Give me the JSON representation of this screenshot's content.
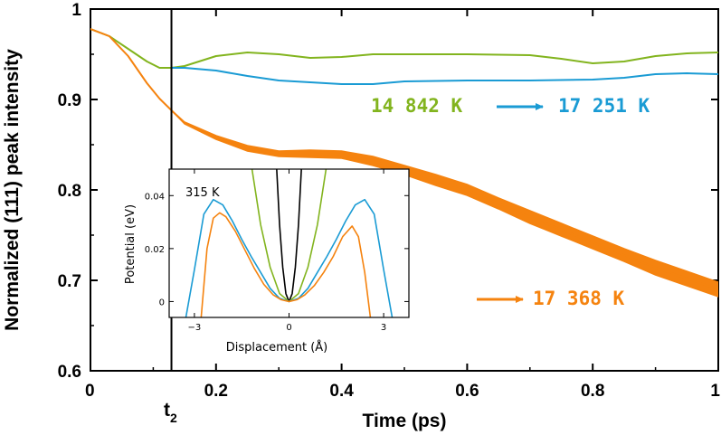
{
  "chart_data": {
    "type": "line",
    "xlabel": "Time (ps)",
    "ylabel": "Normalized (111) peak intensity",
    "xlim": [
      0,
      1
    ],
    "ylim": [
      0.6,
      1.0
    ],
    "x_ticks": [
      "0",
      "0.2",
      "0.4",
      "0.6",
      "0.8",
      "1"
    ],
    "y_ticks": [
      "0.6",
      "0.7",
      "0.8",
      "0.9",
      "1"
    ],
    "marker_line": {
      "label": "t",
      "subscript": "2",
      "x": 0.129
    },
    "colors": {
      "green": "#82b41e",
      "blue": "#1a9bd4",
      "orange": "#f5830f"
    },
    "series": [
      {
        "name": "green",
        "x": [
          0,
          0.03,
          0.06,
          0.09,
          0.11,
          0.129,
          0.15,
          0.2,
          0.25,
          0.3,
          0.35,
          0.4,
          0.45,
          0.5,
          0.6,
          0.7,
          0.75,
          0.8,
          0.85,
          0.9,
          0.95,
          1.0
        ],
        "values": [
          0.978,
          0.97,
          0.956,
          0.942,
          0.935,
          0.935,
          0.937,
          0.948,
          0.952,
          0.95,
          0.946,
          0.947,
          0.95,
          0.95,
          0.95,
          0.949,
          0.945,
          0.94,
          0.942,
          0.948,
          0.951,
          0.952
        ]
      },
      {
        "name": "blue",
        "x": [
          0.129,
          0.15,
          0.2,
          0.25,
          0.3,
          0.35,
          0.4,
          0.45,
          0.5,
          0.6,
          0.7,
          0.8,
          0.85,
          0.9,
          0.95,
          1.0
        ],
        "values": [
          0.935,
          0.935,
          0.932,
          0.926,
          0.921,
          0.919,
          0.917,
          0.917,
          0.92,
          0.921,
          0.921,
          0.922,
          0.924,
          0.928,
          0.929,
          0.928
        ]
      },
      {
        "name": "orange",
        "x": [
          0,
          0.03,
          0.06,
          0.09,
          0.11,
          0.129,
          0.15,
          0.2,
          0.25,
          0.3,
          0.35,
          0.4,
          0.45,
          0.5,
          0.55,
          0.6,
          0.65,
          0.7,
          0.75,
          0.8,
          0.85,
          0.9,
          0.95,
          1.0
        ],
        "values": [
          0.978,
          0.97,
          0.948,
          0.918,
          0.901,
          0.888,
          0.874,
          0.858,
          0.846,
          0.84,
          0.84,
          0.839,
          0.832,
          0.822,
          0.811,
          0.8,
          0.785,
          0.77,
          0.756,
          0.742,
          0.728,
          0.714,
          0.702,
          0.69
        ],
        "band_halfwidth": [
          0,
          0,
          0,
          0,
          0,
          0,
          0.001,
          0.002,
          0.003,
          0.003,
          0.004,
          0.004,
          0.005,
          0.005,
          0.006,
          0.006,
          0.006,
          0.007,
          0.007,
          0.007,
          0.007,
          0.008,
          0.008,
          0.008
        ]
      }
    ],
    "annotations": {
      "green_temp": "14 842 K",
      "blue_temp": "17 251 K",
      "orange_temp": "17 368 K"
    },
    "inset": {
      "type": "line",
      "title": "315 K",
      "xlabel": "Displacement (Å)",
      "ylabel": "Potential (eV)",
      "xlim": [
        -3.8,
        3.8
      ],
      "ylim": [
        -0.006,
        0.05
      ],
      "x_ticks": [
        "−3",
        "0",
        "3"
      ],
      "y_ticks": [
        "0",
        "0.02",
        "0.04"
      ],
      "series": [
        {
          "name": "black",
          "x": [
            -0.4,
            -0.3,
            -0.2,
            -0.1,
            0,
            0.1,
            0.2,
            0.3,
            0.4
          ],
          "values": [
            0.052,
            0.029,
            0.013,
            0.003,
            0,
            0.003,
            0.013,
            0.029,
            0.052
          ]
        },
        {
          "name": "green",
          "x": [
            -1.2,
            -0.9,
            -0.6,
            -0.3,
            0,
            0.3,
            0.6,
            0.9,
            1.2
          ],
          "values": [
            0.052,
            0.029,
            0.013,
            0.003,
            0,
            0.003,
            0.013,
            0.029,
            0.052
          ]
        },
        {
          "name": "blue",
          "x": [
            -3.3,
            -3.0,
            -2.7,
            -2.4,
            -2.1,
            -1.8,
            -1.5,
            -1.2,
            -0.9,
            -0.6,
            -0.3,
            0,
            0.3,
            0.6,
            0.9,
            1.2,
            1.5,
            1.8,
            2.1,
            2.4,
            2.7,
            3.0,
            3.3
          ],
          "values": [
            -0.008,
            0.012,
            0.033,
            0.0385,
            0.0365,
            0.0305,
            0.0235,
            0.017,
            0.011,
            0.005,
            0.0012,
            0,
            0.0012,
            0.005,
            0.011,
            0.017,
            0.0235,
            0.0305,
            0.0365,
            0.0385,
            0.033,
            0.012,
            -0.008
          ]
        },
        {
          "name": "orange",
          "x": [
            -2.8,
            -2.6,
            -2.4,
            -2.2,
            -2.0,
            -1.7,
            -1.4,
            -1.1,
            -0.8,
            -0.5,
            -0.25,
            0,
            0.25,
            0.5,
            0.8,
            1.1,
            1.4,
            1.7,
            2.0,
            2.2,
            2.4,
            2.6
          ],
          "values": [
            -0.008,
            0.02,
            0.0315,
            0.0335,
            0.032,
            0.0265,
            0.0195,
            0.0125,
            0.0065,
            0.0025,
            0.0007,
            0,
            0.0007,
            0.0025,
            0.006,
            0.011,
            0.017,
            0.0245,
            0.0285,
            0.0245,
            0.011,
            -0.008
          ]
        }
      ]
    }
  }
}
